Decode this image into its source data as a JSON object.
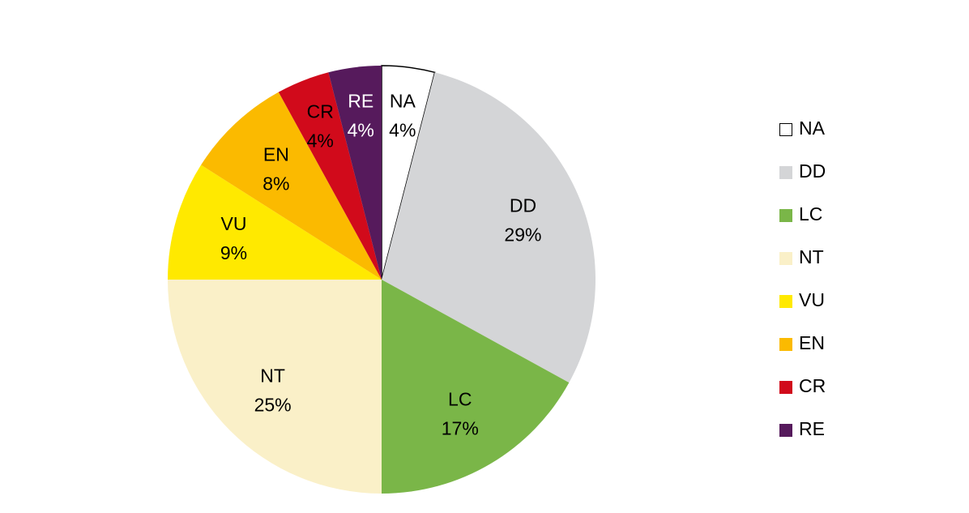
{
  "chart_data": {
    "type": "pie",
    "title": "",
    "slices": [
      {
        "label": "NA",
        "percent_label": "4%",
        "value": 4,
        "color": "#ffffff",
        "outline": "#000000",
        "text_color": "#000000"
      },
      {
        "label": "DD",
        "percent_label": "29%",
        "value": 29,
        "color": "#d4d5d7",
        "text_color": "#000000"
      },
      {
        "label": "LC",
        "percent_label": "17%",
        "value": 17,
        "color": "#7ab648",
        "text_color": "#000000"
      },
      {
        "label": "NT",
        "percent_label": "25%",
        "value": 25,
        "color": "#faf0c8",
        "text_color": "#000000"
      },
      {
        "label": "VU",
        "percent_label": "9%",
        "value": 9,
        "color": "#ffe900",
        "text_color": "#000000"
      },
      {
        "label": "EN",
        "percent_label": "8%",
        "value": 8,
        "color": "#fbba00",
        "text_color": "#000000"
      },
      {
        "label": "CR",
        "percent_label": "4%",
        "value": 4,
        "color": "#d10a1b",
        "text_color": "#000000"
      },
      {
        "label": "RE",
        "percent_label": "4%",
        "value": 4,
        "color": "#561a5c",
        "text_color": "#ffffff"
      }
    ],
    "legend": {
      "position": "right",
      "items": [
        "NA",
        "DD",
        "LC",
        "NT",
        "VU",
        "EN",
        "CR",
        "RE"
      ]
    },
    "start_angle_deg": 0,
    "direction": "clockwise"
  }
}
